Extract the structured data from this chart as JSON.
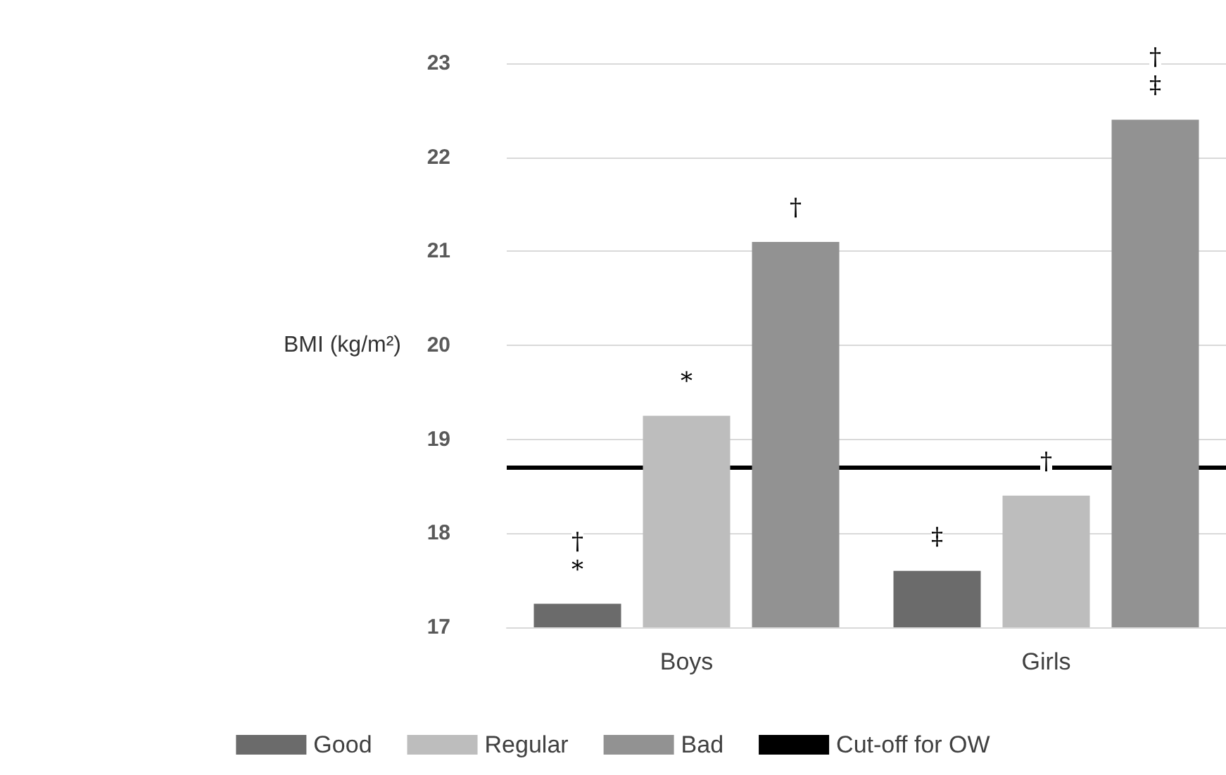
{
  "chart_data": {
    "type": "bar",
    "ylabel": "BMI (kg/m²)",
    "categories": [
      "Boys",
      "Girls"
    ],
    "series": [
      {
        "name": "Good",
        "color": "#6b6b6b",
        "values": [
          17.25,
          17.6
        ],
        "value_labels": [
          "†\n*",
          "‡"
        ]
      },
      {
        "name": "Regular",
        "color": "#bdbdbd",
        "values": [
          19.25,
          18.4
        ],
        "value_labels": [
          "*",
          "†"
        ]
      },
      {
        "name": "Bad",
        "color": "#929292",
        "values": [
          21.1,
          22.4
        ],
        "value_labels": [
          "†",
          "†\n‡"
        ]
      }
    ],
    "ylim": [
      17,
      23
    ],
    "yticks": [
      17,
      18,
      19,
      20,
      21,
      22,
      23
    ],
    "grid": "y",
    "legend": "bottom",
    "ref_lines": [
      {
        "axis": "y",
        "value": 18.7,
        "label": "Cut-off for OW",
        "color": "#000000"
      }
    ]
  }
}
